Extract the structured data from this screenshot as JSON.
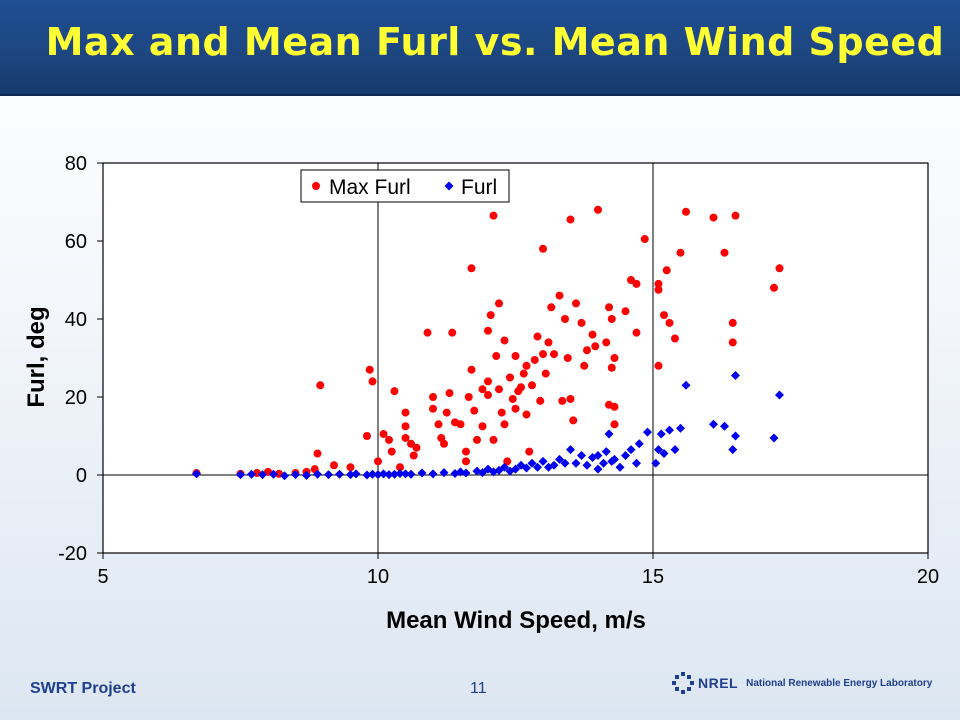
{
  "header": {
    "title": "Max and Mean Furl vs. Mean Wind Speed"
  },
  "footer": {
    "project": "SWRT Project",
    "page": "11",
    "org_abbrev": "NREL",
    "org_name": "National Renewable Energy Laboratory"
  },
  "colors": {
    "max_furl": "#ff0000",
    "furl": "#0000ee",
    "header_bg": "#1f4e94",
    "title": "#ffff33"
  },
  "chart_data": {
    "type": "scatter",
    "title": "",
    "xlabel": "Mean Wind Speed, m/s",
    "ylabel": "Furl, deg",
    "xlim": [
      5,
      20
    ],
    "ylim": [
      -20,
      80
    ],
    "xticks": [
      5,
      10,
      15,
      20
    ],
    "yticks": [
      -20,
      0,
      20,
      40,
      60,
      80
    ],
    "grid": "vertical lines at x ticks",
    "legend": {
      "placement": "top-left",
      "entries": [
        "Max Furl",
        "Furl"
      ]
    },
    "series": [
      {
        "name": "Max Furl",
        "marker": "circle",
        "color": "#ff0000",
        "points": [
          [
            6.7,
            0.5
          ],
          [
            7.5,
            0.3
          ],
          [
            7.8,
            0.5
          ],
          [
            8,
            0.8
          ],
          [
            8.2,
            0.3
          ],
          [
            8.5,
            0.5
          ],
          [
            8.7,
            0.8
          ],
          [
            8.85,
            1.5
          ],
          [
            8.9,
            5.5
          ],
          [
            8.95,
            23
          ],
          [
            9.2,
            2.5
          ],
          [
            9.5,
            2
          ],
          [
            9.8,
            10
          ],
          [
            9.85,
            27
          ],
          [
            9.9,
            24
          ],
          [
            10,
            3.5
          ],
          [
            10.1,
            10.5
          ],
          [
            10.2,
            9
          ],
          [
            10.25,
            6
          ],
          [
            10.3,
            21.5
          ],
          [
            10.4,
            2
          ],
          [
            10.5,
            9.5
          ],
          [
            10.5,
            12.5
          ],
          [
            10.5,
            16
          ],
          [
            10.6,
            8
          ],
          [
            10.65,
            5
          ],
          [
            10.7,
            7
          ],
          [
            10.9,
            36.5
          ],
          [
            11,
            17
          ],
          [
            11,
            20
          ],
          [
            11.1,
            13
          ],
          [
            11.15,
            9.5
          ],
          [
            11.2,
            8
          ],
          [
            11.25,
            16
          ],
          [
            11.3,
            21
          ],
          [
            11.35,
            36.5
          ],
          [
            11.4,
            13.5
          ],
          [
            11.5,
            13
          ],
          [
            11.6,
            6
          ],
          [
            11.6,
            3.5
          ],
          [
            11.65,
            20
          ],
          [
            11.7,
            27
          ],
          [
            11.7,
            53
          ],
          [
            11.75,
            16.5
          ],
          [
            11.8,
            9
          ],
          [
            11.9,
            12.5
          ],
          [
            11.9,
            22
          ],
          [
            12,
            20.5
          ],
          [
            12,
            24
          ],
          [
            12,
            37
          ],
          [
            12.05,
            41
          ],
          [
            12.1,
            66.5
          ],
          [
            12.1,
            9
          ],
          [
            12.15,
            30.5
          ],
          [
            12.2,
            22
          ],
          [
            12.2,
            44
          ],
          [
            12.25,
            16
          ],
          [
            12.3,
            34.5
          ],
          [
            12.3,
            13
          ],
          [
            12.35,
            3.5
          ],
          [
            12.4,
            25
          ],
          [
            12.45,
            19.5
          ],
          [
            12.5,
            30.5
          ],
          [
            12.5,
            17
          ],
          [
            12.55,
            21.5
          ],
          [
            12.6,
            22.5
          ],
          [
            12.65,
            26
          ],
          [
            12.7,
            28
          ],
          [
            12.7,
            15.5
          ],
          [
            12.75,
            6
          ],
          [
            12.8,
            23
          ],
          [
            12.85,
            29.5
          ],
          [
            12.9,
            35.5
          ],
          [
            12.95,
            19
          ],
          [
            13,
            31
          ],
          [
            13,
            58
          ],
          [
            13.05,
            26
          ],
          [
            13.1,
            34
          ],
          [
            13.15,
            43
          ],
          [
            13.2,
            31
          ],
          [
            13.3,
            46
          ],
          [
            13.35,
            19
          ],
          [
            13.4,
            40
          ],
          [
            13.45,
            30
          ],
          [
            13.5,
            65.5
          ],
          [
            13.5,
            19.5
          ],
          [
            13.55,
            14
          ],
          [
            13.6,
            44
          ],
          [
            13.7,
            39
          ],
          [
            13.75,
            28
          ],
          [
            13.8,
            32
          ],
          [
            13.9,
            36
          ],
          [
            13.95,
            33
          ],
          [
            14,
            68
          ],
          [
            14.15,
            34
          ],
          [
            14.2,
            18
          ],
          [
            14.2,
            43
          ],
          [
            14.25,
            40
          ],
          [
            14.25,
            27.5
          ],
          [
            14.3,
            30
          ],
          [
            14.3,
            13
          ],
          [
            14.3,
            17.5
          ],
          [
            14.5,
            42
          ],
          [
            14.6,
            50
          ],
          [
            14.7,
            36.5
          ],
          [
            14.7,
            49
          ],
          [
            14.85,
            60.5
          ],
          [
            15.1,
            28
          ],
          [
            15.1,
            49
          ],
          [
            15.1,
            47.5
          ],
          [
            15.2,
            41
          ],
          [
            15.25,
            52.5
          ],
          [
            15.3,
            39
          ],
          [
            15.4,
            35
          ],
          [
            15.5,
            57
          ],
          [
            15.6,
            67.5
          ],
          [
            16.1,
            66
          ],
          [
            16.3,
            57
          ],
          [
            16.45,
            34
          ],
          [
            16.45,
            39
          ],
          [
            16.5,
            66.5
          ],
          [
            17.2,
            48
          ],
          [
            17.3,
            53
          ]
        ]
      },
      {
        "name": "Furl",
        "marker": "diamond",
        "color": "#0000ee",
        "points": [
          [
            6.7,
            0.3
          ],
          [
            7.5,
            0.1
          ],
          [
            7.7,
            0.2
          ],
          [
            7.9,
            0.1
          ],
          [
            8.1,
            0.2
          ],
          [
            8.3,
            -0.2
          ],
          [
            8.5,
            0.1
          ],
          [
            8.7,
            -0.1
          ],
          [
            8.9,
            0.2
          ],
          [
            9.1,
            0.1
          ],
          [
            9.3,
            0.2
          ],
          [
            9.5,
            0.1
          ],
          [
            9.6,
            0.3
          ],
          [
            9.8,
            0
          ],
          [
            9.9,
            0.2
          ],
          [
            10,
            0.1
          ],
          [
            10.1,
            0.3
          ],
          [
            10.2,
            0.1
          ],
          [
            10.3,
            0.2
          ],
          [
            10.4,
            0.4
          ],
          [
            10.5,
            0.3
          ],
          [
            10.6,
            0.2
          ],
          [
            10.8,
            0.5
          ],
          [
            11,
            0.3
          ],
          [
            11.2,
            0.6
          ],
          [
            11.4,
            0.4
          ],
          [
            11.5,
            0.8
          ],
          [
            11.6,
            0.5
          ],
          [
            11.8,
            1
          ],
          [
            11.9,
            0.6
          ],
          [
            12,
            1.5
          ],
          [
            12.1,
            0.8
          ],
          [
            12.2,
            1.2
          ],
          [
            12.3,
            2
          ],
          [
            12.4,
            1
          ],
          [
            12.5,
            1.5
          ],
          [
            12.6,
            2.5
          ],
          [
            12.7,
            1.8
          ],
          [
            12.8,
            3
          ],
          [
            12.9,
            2
          ],
          [
            13,
            3.5
          ],
          [
            13.1,
            2
          ],
          [
            13.2,
            2.5
          ],
          [
            13.3,
            4
          ],
          [
            13.4,
            3
          ],
          [
            13.5,
            6.5
          ],
          [
            13.6,
            3
          ],
          [
            13.7,
            5
          ],
          [
            13.8,
            2.5
          ],
          [
            13.9,
            4.5
          ],
          [
            14,
            5
          ],
          [
            14,
            1.5
          ],
          [
            14.1,
            3
          ],
          [
            14.15,
            6
          ],
          [
            14.2,
            10.5
          ],
          [
            14.25,
            3.5
          ],
          [
            14.3,
            4
          ],
          [
            14.4,
            2
          ],
          [
            14.5,
            5
          ],
          [
            14.6,
            6.5
          ],
          [
            14.7,
            3
          ],
          [
            14.75,
            8
          ],
          [
            14.9,
            11
          ],
          [
            15.05,
            3
          ],
          [
            15.1,
            6.5
          ],
          [
            15.15,
            10.5
          ],
          [
            15.2,
            5.5
          ],
          [
            15.3,
            11.5
          ],
          [
            15.4,
            6.5
          ],
          [
            15.5,
            12
          ],
          [
            15.6,
            23
          ],
          [
            16.1,
            13
          ],
          [
            16.3,
            12.5
          ],
          [
            16.45,
            6.5
          ],
          [
            16.5,
            10
          ],
          [
            16.5,
            25.5
          ],
          [
            17.2,
            9.5
          ],
          [
            17.3,
            20.5
          ]
        ]
      }
    ]
  }
}
